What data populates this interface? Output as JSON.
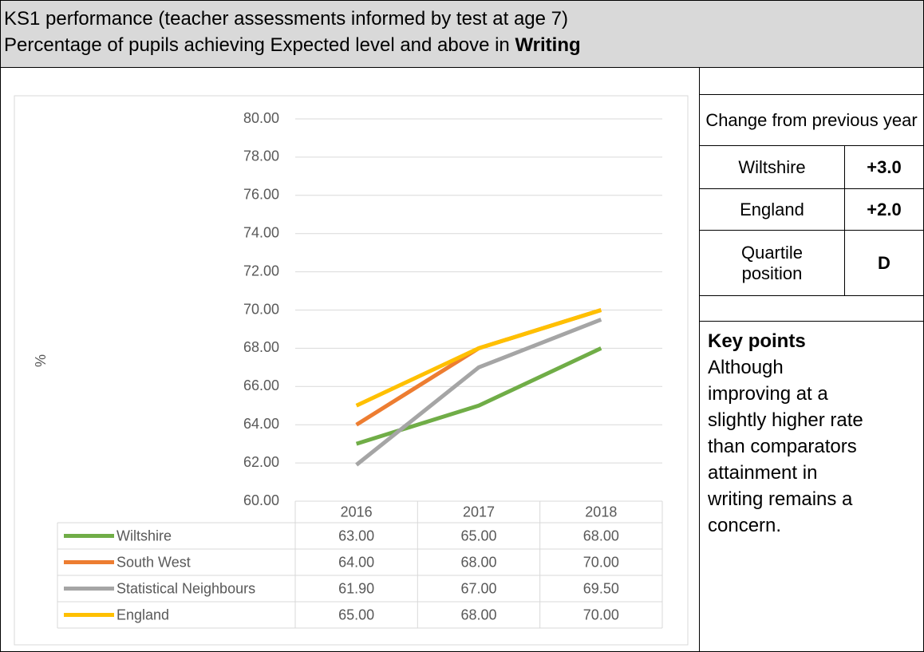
{
  "header": {
    "line1": "KS1 performance (teacher assessments informed by test at age 7)",
    "line2": "Percentage of pupils achieving Expected level and above in",
    "line2_bold": "Writing"
  },
  "chart_data": {
    "type": "line",
    "ylabel": "%",
    "categories": [
      "2016",
      "2017",
      "2018"
    ],
    "series": [
      {
        "name": "Wiltshire",
        "color": "#70ad47",
        "values": [
          63,
          65,
          68
        ],
        "value_labels": [
          "63.00",
          "65.00",
          "68.00"
        ]
      },
      {
        "name": "South West",
        "color": "#ed7d31",
        "values": [
          64,
          68,
          70
        ],
        "value_labels": [
          "64.00",
          "68.00",
          "70.00"
        ]
      },
      {
        "name": "Statistical Neighbours",
        "color": "#a5a5a5",
        "values": [
          61.9,
          67,
          69.5
        ],
        "value_labels": [
          "61.90",
          "67.00",
          "69.50"
        ]
      },
      {
        "name": "England",
        "color": "#ffc000",
        "values": [
          65,
          68,
          70
        ],
        "value_labels": [
          "65.00",
          "68.00",
          "70.00"
        ]
      }
    ],
    "ylim": [
      60,
      80
    ],
    "yticks": [
      {
        "value": 60,
        "label": "60.00"
      },
      {
        "value": 62,
        "label": "62.00"
      },
      {
        "value": 64,
        "label": "64.00"
      },
      {
        "value": 66,
        "label": "66.00"
      },
      {
        "value": 68,
        "label": "68.00"
      },
      {
        "value": 70,
        "label": "70.00"
      },
      {
        "value": 72,
        "label": "72.00"
      },
      {
        "value": 74,
        "label": "74.00"
      },
      {
        "value": 76,
        "label": "76.00"
      },
      {
        "value": 78,
        "label": "78.00"
      },
      {
        "value": 80,
        "label": "80.00"
      }
    ],
    "grid": true
  },
  "change_table": {
    "title": "Change from previous year",
    "rows": [
      [
        "Wiltshire",
        "+3.0"
      ],
      [
        "England",
        "+2.0"
      ],
      [
        "Quartile position",
        "D"
      ]
    ]
  },
  "key_points": {
    "title": "Key points",
    "text": "Although improving at a slightly higher rate than comparators attainment in writing remains a concern."
  }
}
